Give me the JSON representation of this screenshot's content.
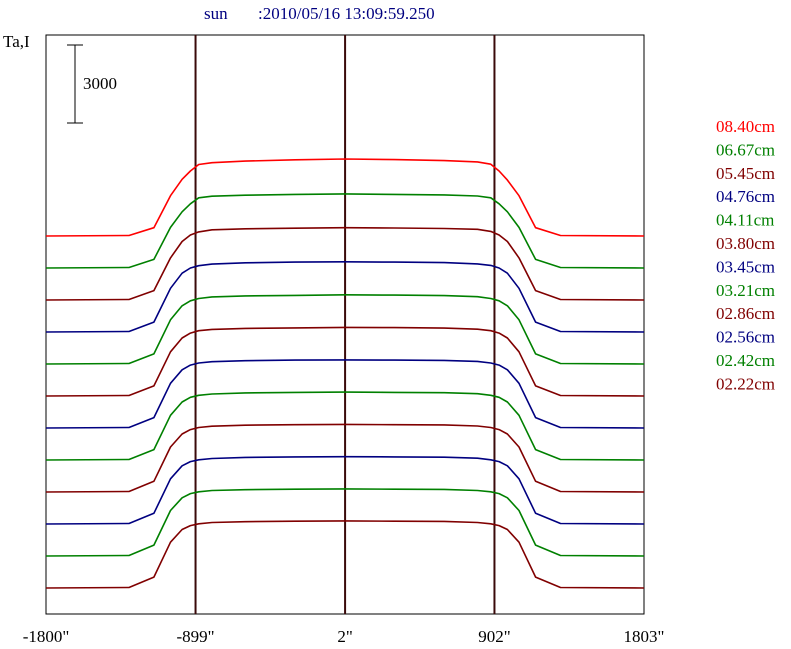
{
  "header": {
    "object": "sun",
    "timestamp": ":2010/05/16 13:09:59.250"
  },
  "chart_data": {
    "type": "line",
    "title": "",
    "ylabel": "Ta,I",
    "scale_bar": {
      "label": "3000",
      "value": 3000
    },
    "xlim": [
      -1800,
      1803
    ],
    "x_ticks": [
      {
        "value": -1800,
        "label": "-1800\""
      },
      {
        "value": -899,
        "label": "-899\""
      },
      {
        "value": 2,
        "label": "2\""
      },
      {
        "value": 902,
        "label": "902\""
      },
      {
        "value": 1803,
        "label": "1803\""
      }
    ],
    "vertical_markers": [
      -899,
      2,
      902
    ],
    "legend_placement": "right",
    "profile_x": [
      -1800,
      -1300,
      -1150,
      -1050,
      -980,
      -930,
      -880,
      -800,
      -600,
      -300,
      0,
      300,
      600,
      800,
      880,
      930,
      980,
      1050,
      1150,
      1300,
      1803
    ],
    "series": [
      {
        "name": "08.40cm",
        "color": "#ff0000",
        "values": [
          0,
          20,
          320,
          1550,
          2180,
          2500,
          2750,
          2820,
          2880,
          2930,
          2960,
          2940,
          2900,
          2850,
          2760,
          2500,
          2150,
          1550,
          320,
          20,
          0
        ]
      },
      {
        "name": "06.67cm",
        "color": "#008000",
        "values": [
          0,
          20,
          330,
          1560,
          2160,
          2470,
          2700,
          2760,
          2800,
          2830,
          2850,
          2830,
          2810,
          2770,
          2700,
          2470,
          2160,
          1560,
          330,
          20,
          0
        ]
      },
      {
        "name": "05.45cm",
        "color": "#800000",
        "values": [
          0,
          20,
          360,
          1620,
          2250,
          2500,
          2620,
          2700,
          2740,
          2760,
          2780,
          2770,
          2750,
          2720,
          2640,
          2500,
          2250,
          1620,
          360,
          20,
          0
        ]
      },
      {
        "name": "04.76cm",
        "color": "#000080",
        "values": [
          0,
          20,
          380,
          1680,
          2260,
          2460,
          2550,
          2610,
          2660,
          2690,
          2700,
          2690,
          2670,
          2620,
          2560,
          2460,
          2260,
          1680,
          380,
          20,
          0
        ]
      },
      {
        "name": "04.11cm",
        "color": "#008000",
        "values": [
          0,
          20,
          390,
          1700,
          2240,
          2430,
          2520,
          2580,
          2620,
          2640,
          2660,
          2650,
          2630,
          2590,
          2520,
          2430,
          2240,
          1700,
          390,
          20,
          0
        ]
      },
      {
        "name": "03.80cm",
        "color": "#800000",
        "values": [
          0,
          20,
          390,
          1700,
          2230,
          2420,
          2510,
          2560,
          2600,
          2620,
          2640,
          2630,
          2610,
          2570,
          2510,
          2420,
          2230,
          1700,
          390,
          20,
          0
        ]
      },
      {
        "name": "03.45cm",
        "color": "#000080",
        "values": [
          0,
          20,
          400,
          1720,
          2240,
          2420,
          2500,
          2550,
          2590,
          2610,
          2620,
          2610,
          2600,
          2560,
          2500,
          2420,
          2240,
          1720,
          400,
          20,
          0
        ]
      },
      {
        "name": "03.21cm",
        "color": "#008000",
        "values": [
          0,
          20,
          400,
          1720,
          2230,
          2410,
          2490,
          2540,
          2580,
          2600,
          2610,
          2600,
          2590,
          2550,
          2490,
          2410,
          2230,
          1720,
          400,
          20,
          0
        ]
      },
      {
        "name": "02.86cm",
        "color": "#800000",
        "values": [
          0,
          20,
          410,
          1730,
          2230,
          2400,
          2480,
          2530,
          2570,
          2590,
          2600,
          2590,
          2580,
          2540,
          2480,
          2400,
          2230,
          1730,
          410,
          20,
          0
        ]
      },
      {
        "name": "02.56cm",
        "color": "#000080",
        "values": [
          0,
          20,
          410,
          1740,
          2240,
          2400,
          2470,
          2520,
          2560,
          2580,
          2590,
          2580,
          2570,
          2530,
          2470,
          2400,
          2240,
          1740,
          410,
          20,
          0
        ]
      },
      {
        "name": "02.42cm",
        "color": "#008000",
        "values": [
          0,
          20,
          420,
          1750,
          2240,
          2400,
          2470,
          2520,
          2550,
          2570,
          2580,
          2570,
          2560,
          2520,
          2470,
          2400,
          2240,
          1750,
          420,
          20,
          0
        ]
      },
      {
        "name": "02.22cm",
        "color": "#800000",
        "values": [
          0,
          20,
          420,
          1760,
          2250,
          2400,
          2470,
          2520,
          2550,
          2570,
          2580,
          2570,
          2560,
          2520,
          2470,
          2400,
          2250,
          1760,
          420,
          20,
          0
        ]
      }
    ]
  }
}
